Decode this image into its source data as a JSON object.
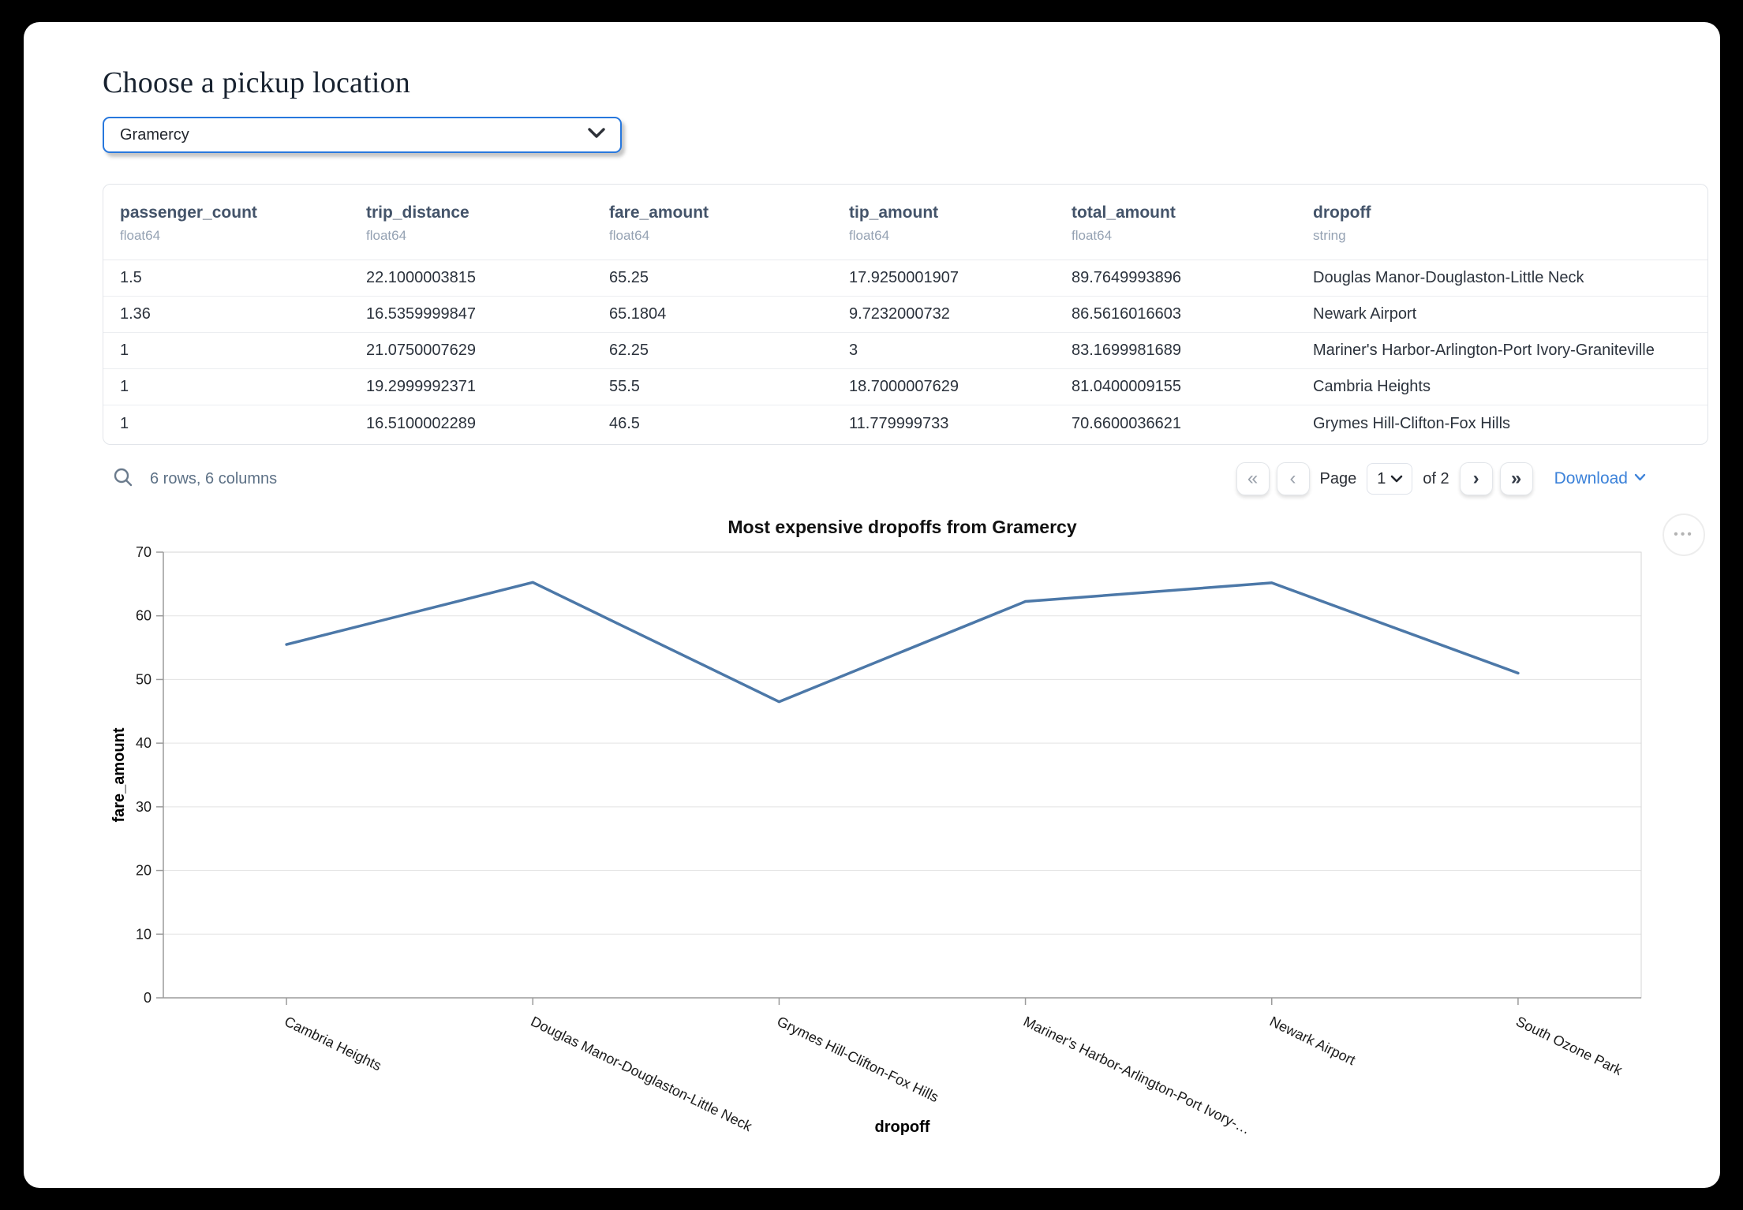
{
  "header": {
    "title": "Choose a pickup location",
    "dropdown_value": "Gramercy"
  },
  "table": {
    "columns": [
      {
        "name": "passenger_count",
        "type": "float64"
      },
      {
        "name": "trip_distance",
        "type": "float64"
      },
      {
        "name": "fare_amount",
        "type": "float64"
      },
      {
        "name": "tip_amount",
        "type": "float64"
      },
      {
        "name": "total_amount",
        "type": "float64"
      },
      {
        "name": "dropoff",
        "type": "string"
      }
    ],
    "rows": [
      [
        "1.5",
        "22.1000003815",
        "65.25",
        "17.9250001907",
        "89.7649993896",
        "Douglas Manor-Douglaston-Little Neck"
      ],
      [
        "1.36",
        "16.5359999847",
        "65.1804",
        "9.7232000732",
        "86.5616016603",
        "Newark Airport"
      ],
      [
        "1",
        "21.0750007629",
        "62.25",
        "3",
        "83.1699981689",
        "Mariner's Harbor-Arlington-Port Ivory-Graniteville"
      ],
      [
        "1",
        "19.2999992371",
        "55.5",
        "18.7000007629",
        "81.0400009155",
        "Cambria Heights"
      ],
      [
        "1",
        "16.5100002289",
        "46.5",
        "11.779999733",
        "70.6600036621",
        "Grymes Hill-Clifton-Fox Hills"
      ]
    ],
    "footer": {
      "summary": "6 rows, 6 columns",
      "page_label": "Page",
      "page_value": "1",
      "of_label": "of 2",
      "download_label": "Download"
    }
  },
  "icons": {
    "first_page": "«",
    "prev_page": "‹",
    "next_page": "›",
    "last_page": "»",
    "more_options": "•••"
  },
  "colors": {
    "select_border": "#2878dd",
    "download_link": "#3c82d9",
    "line": "#4c78a8"
  },
  "chart_data": {
    "type": "line",
    "title": "Most expensive dropoffs from Gramercy",
    "xlabel": "dropoff",
    "ylabel": "fare_amount",
    "categories": [
      "Cambria Heights",
      "Douglas Manor-Douglaston-Little Neck",
      "Grymes Hill-Clifton-Fox Hills",
      "Mariner's Harbor-Arlington-Port Ivory-…",
      "Newark Airport",
      "South Ozone Park"
    ],
    "values": [
      55.5,
      65.25,
      46.5,
      62.25,
      65.18,
      51
    ],
    "ylim": [
      0,
      70
    ],
    "yticks": [
      0,
      10,
      20,
      30,
      40,
      50,
      60,
      70
    ],
    "grid": true,
    "legend": "none",
    "line_color": "#4c78a8",
    "x_label_angle_deg": 26
  }
}
